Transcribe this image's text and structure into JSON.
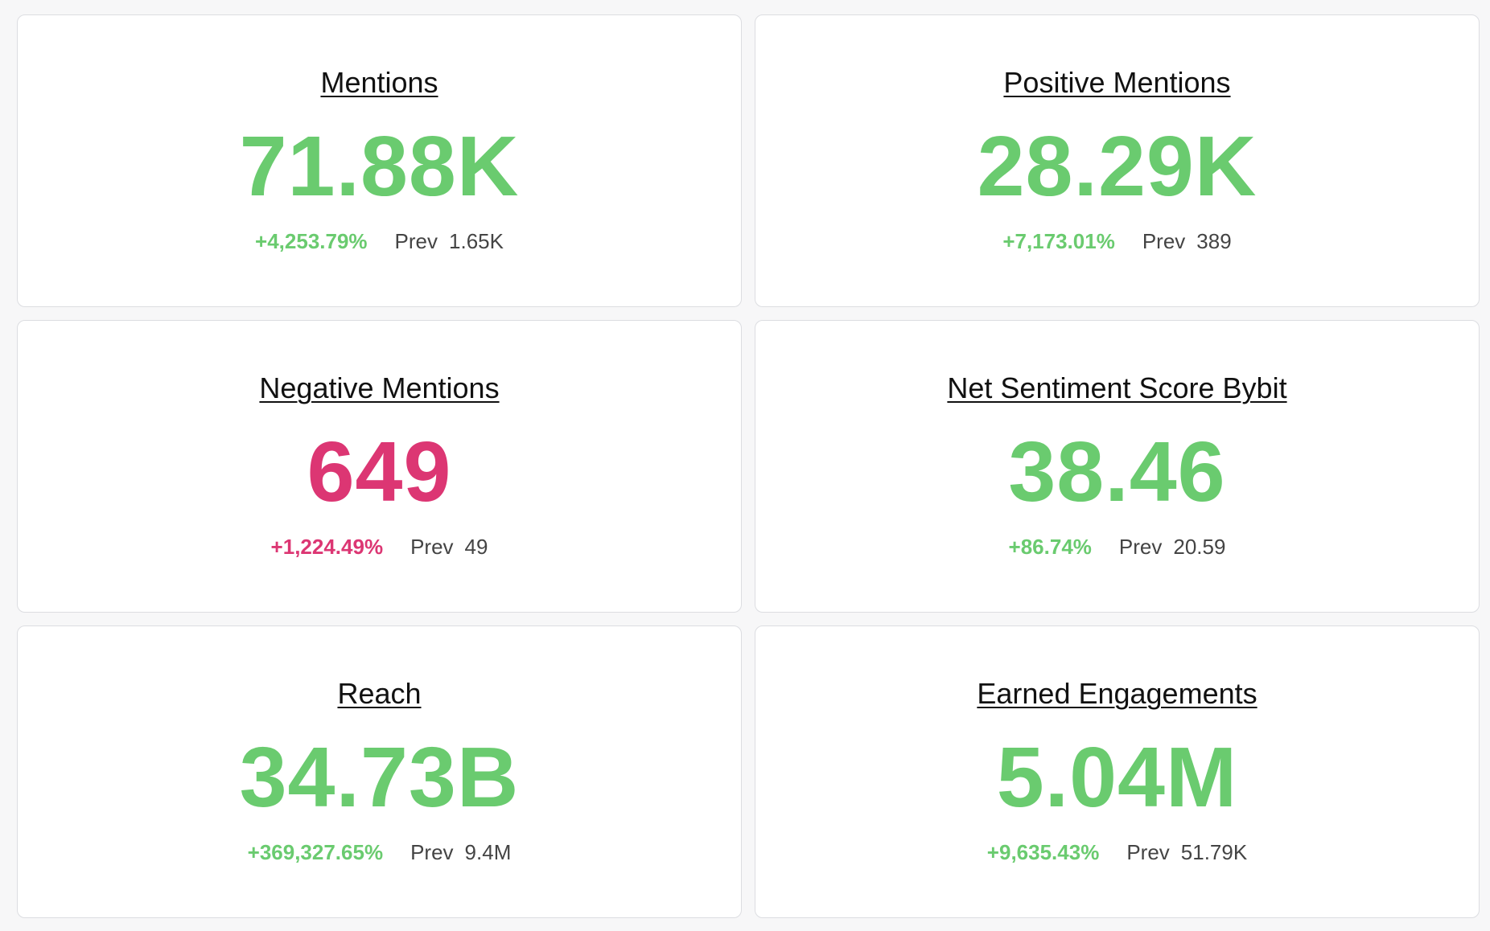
{
  "cards": [
    {
      "title": "Mentions",
      "value": "71.88K",
      "change": "+4,253.79%",
      "prev_label": "Prev",
      "prev_value": "1.65K",
      "color": "#6acb6f"
    },
    {
      "title": "Positive Mentions",
      "value": "28.29K",
      "change": "+7,173.01%",
      "prev_label": "Prev",
      "prev_value": "389",
      "color": "#6acb6f"
    },
    {
      "title": "Negative Mentions",
      "value": "649",
      "change": "+1,224.49%",
      "prev_label": "Prev",
      "prev_value": "49",
      "color": "#dc3673"
    },
    {
      "title": "Net Sentiment Score Bybit",
      "value": "38.46",
      "change": "+86.74%",
      "prev_label": "Prev",
      "prev_value": "20.59",
      "color": "#6acb6f"
    },
    {
      "title": "Reach",
      "value": "34.73B",
      "change": "+369,327.65%",
      "prev_label": "Prev",
      "prev_value": "9.4M",
      "color": "#6acb6f"
    },
    {
      "title": "Earned Engagements",
      "value": "5.04M",
      "change": "+9,635.43%",
      "prev_label": "Prev",
      "prev_value": "51.79K",
      "color": "#6acb6f"
    }
  ]
}
